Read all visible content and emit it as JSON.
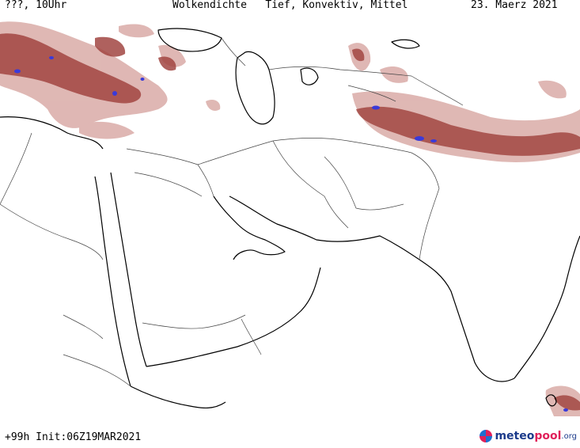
{
  "header": {
    "left": "???, 10Uhr",
    "title": "Wolkendichte   Tief, Konvektiv, Mittel",
    "date": "23. Maerz 2021"
  },
  "footer": {
    "init": "+99h Init:06Z19MAR2021"
  },
  "logo": {
    "part1": "meteo",
    "part2": "pool",
    "part3": ".org"
  },
  "colors": {
    "cloud_dense": "#a0403f",
    "cloud_light": "#d9a8a4",
    "convective": "#3a3ad9",
    "coast": "#000000",
    "border": "#555555"
  }
}
